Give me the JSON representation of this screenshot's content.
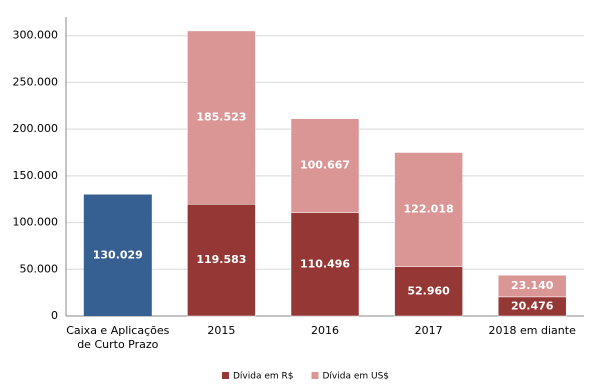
{
  "chart_data": {
    "type": "stacked_bar",
    "categories": [
      "Caixa e Aplicações de Curto Prazo",
      "2015",
      "2016",
      "2017",
      "2018 em diante"
    ],
    "cash": {
      "color": "#376092",
      "values": [
        130029,
        null,
        null,
        null,
        null
      ],
      "value_labels": [
        "130.029",
        null,
        null,
        null,
        null
      ]
    },
    "series": [
      {
        "name": "Dívida em R$",
        "color": "#953735",
        "values": [
          null,
          119583,
          110496,
          52960,
          20476
        ],
        "value_labels": [
          null,
          "119.583",
          "110.496",
          "52.960",
          "20.476"
        ]
      },
      {
        "name": "Dívida em US$",
        "color": "#d99694",
        "values": [
          null,
          185523,
          100667,
          122018,
          23140
        ],
        "value_labels": [
          null,
          "185.523",
          "100.667",
          "122.018",
          "23.140"
        ]
      }
    ],
    "ylim": [
      0,
      320000
    ],
    "yticks": [
      {
        "value": 0,
        "label": "0"
      },
      {
        "value": 50000,
        "label": "50.000"
      },
      {
        "value": 100000,
        "label": "100.000"
      },
      {
        "value": 150000,
        "label": "150.000"
      },
      {
        "value": 200000,
        "label": "200.000"
      },
      {
        "value": 250000,
        "label": "250.000"
      },
      {
        "value": 300000,
        "label": "300.000"
      }
    ],
    "grid": true,
    "legend": "bottom"
  }
}
